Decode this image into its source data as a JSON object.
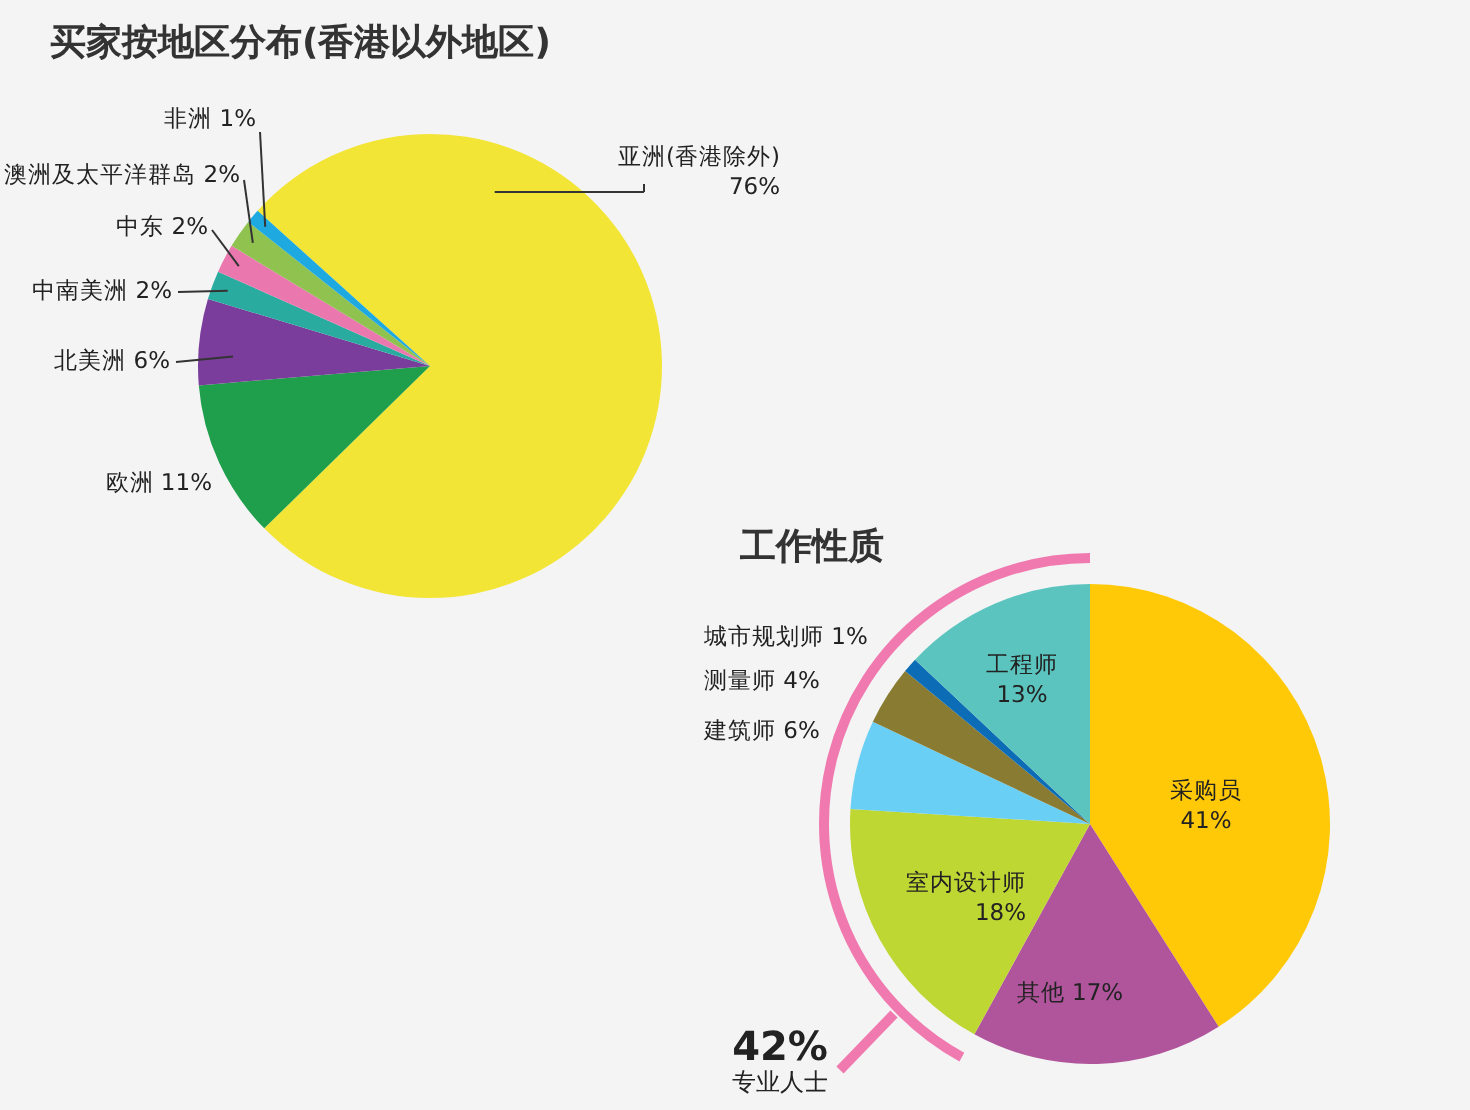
{
  "chart_data": [
    {
      "type": "pie",
      "title": "买家按地区分布(香港以外地区)",
      "categories": [
        "亚洲(香港除外)",
        "欧洲",
        "北美洲",
        "中南美洲",
        "中东",
        "澳洲及太平洋群岛",
        "非洲"
      ],
      "values": [
        76,
        11,
        6,
        2,
        2,
        2,
        1
      ],
      "colors": [
        "#f3e536",
        "#1f9e4c",
        "#7a3d9b",
        "#2aab9f",
        "#ea78ae",
        "#8fc24f",
        "#1fa9e1"
      ],
      "value_labels": [
        "76%",
        "11%",
        "6%",
        "2%",
        "2%",
        "2%",
        "1%"
      ]
    },
    {
      "type": "pie",
      "title": "工作性质",
      "categories": [
        "采购员",
        "其他",
        "室内设计师",
        "建筑师",
        "测量师",
        "城市规划师",
        "工程师"
      ],
      "values": [
        41,
        17,
        18,
        6,
        4,
        1,
        13
      ],
      "colors": [
        "#ffc907",
        "#b0549c",
        "#bfd732",
        "#6acff4",
        "#8a7b32",
        "#0c6cb5",
        "#5cc4be"
      ],
      "value_labels": [
        "41%",
        "17%",
        "18%",
        "6%",
        "4%",
        "1%",
        "13%"
      ],
      "annotations": [
        "42%",
        "专业人士"
      ]
    }
  ]
}
